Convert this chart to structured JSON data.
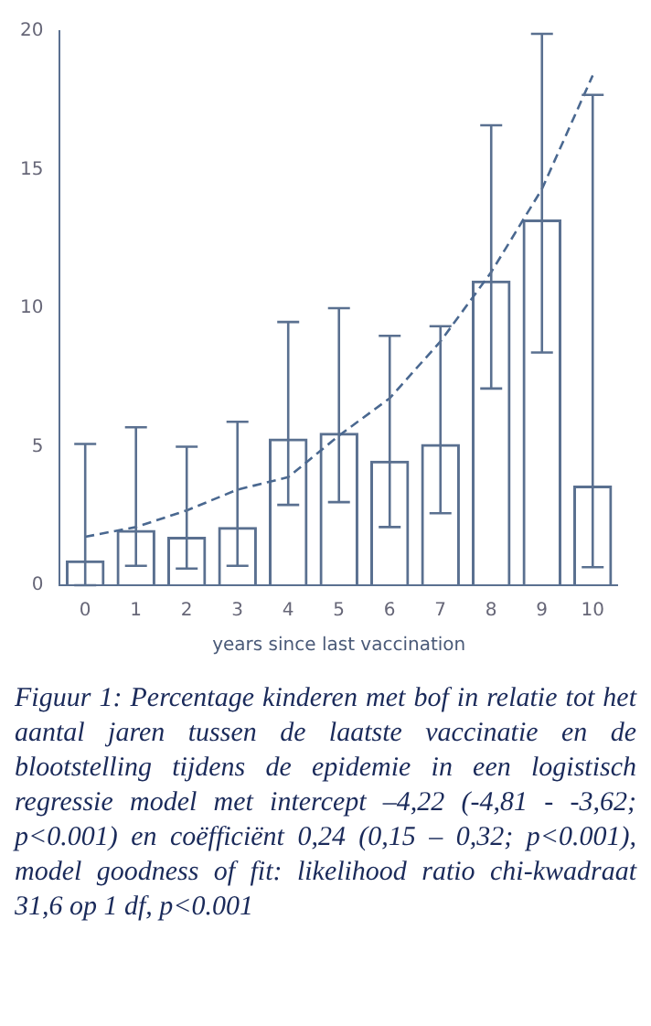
{
  "chart_data": {
    "type": "bar",
    "xlabel": "years since last vaccination",
    "categories": [
      "0",
      "1",
      "2",
      "3",
      "4",
      "5",
      "6",
      "7",
      "8",
      "9",
      "10"
    ],
    "ylim": [
      0,
      20
    ],
    "yticks": [
      0,
      5,
      10,
      15,
      20
    ],
    "grid": false,
    "legend": false,
    "series": [
      {
        "color": "#5a7090",
        "values": [
          0.9,
          2.0,
          1.75,
          2.1,
          5.3,
          5.5,
          4.5,
          5.1,
          11.0,
          13.2,
          3.6
        ],
        "errors": [
          [
            0,
            5.1
          ],
          [
            0.7,
            5.7
          ],
          [
            0.6,
            5.0
          ],
          [
            0.7,
            5.9
          ],
          [
            2.9,
            9.5
          ],
          [
            3.0,
            10.0
          ],
          [
            2.1,
            9.0
          ],
          [
            2.6,
            9.35
          ],
          [
            7.1,
            16.6
          ],
          [
            8.4,
            19.9
          ],
          [
            0.65,
            17.7
          ]
        ]
      },
      {
        "type": "line",
        "color": "#4a6890",
        "line_style": "dashed",
        "marker": "none",
        "values": [
          1.75,
          2.1,
          2.7,
          3.45,
          3.9,
          5.4,
          6.75,
          8.8,
          11.3,
          14.3,
          18.4
        ]
      }
    ],
    "annotations": [
      "Figuur 1: Percentage kinderen met bof in relatie tot het aantal jaren tussen de laatste vaccinatie en de blootstelling tijdens de epidemie in een logistisch regressie model met intercept –4,22 (-4,81 - -3,62; p<0.001) en coëfficiënt 0,24 (0,15 – 0,32; p<0.001), model goodness of fit: likelihood ratio chi-kwadraat 31,6 op 1 df, p<0.001"
    ]
  }
}
